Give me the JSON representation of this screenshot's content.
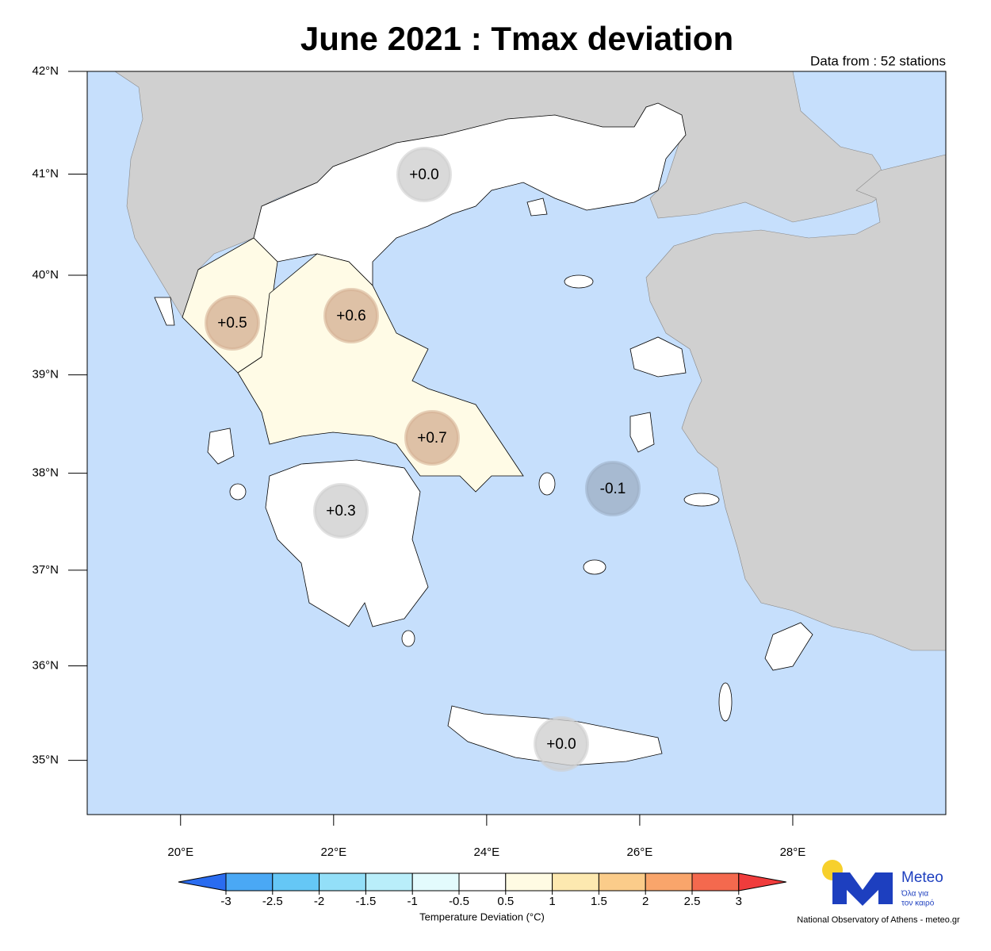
{
  "map": {
    "title": "June 2021 : Tmax deviation",
    "subtitle": "Data from : 52 stations",
    "lonlim": [
      18.78,
      30
    ],
    "latlim": [
      34.42,
      42
    ],
    "lat_ticks": [
      {
        "value": 42,
        "label": "42°N"
      },
      {
        "value": 41,
        "label": "41°N"
      },
      {
        "value": 40,
        "label": "40°N"
      },
      {
        "value": 39,
        "label": "39°N"
      },
      {
        "value": 38,
        "label": "38°N"
      },
      {
        "value": 37,
        "label": "37°N"
      },
      {
        "value": 36,
        "label": "36°N"
      },
      {
        "value": 35,
        "label": "35°N"
      }
    ],
    "lon_ticks": [
      {
        "value": 20,
        "label": "20°E"
      },
      {
        "value": 22,
        "label": "22°E"
      },
      {
        "value": 24,
        "label": "24°E"
      },
      {
        "value": 26,
        "label": "26°E"
      },
      {
        "value": 28,
        "label": "28°E"
      }
    ],
    "stations": {
      "values": [
        0,
        0.5,
        0.6,
        0.7,
        0.3,
        -0.1,
        0
      ],
      "value_labels": [
        "+0.0",
        "+0.5",
        "+0.6",
        "+0.7",
        "+0.3",
        "-0.1",
        "+0.0"
      ],
      "colors": [
        "#cfcfcf",
        "#d6b396",
        "#d6b396",
        "#d6b396",
        "#cfcfcf",
        "#9fb0c6",
        "#cfcfcf"
      ]
    }
  },
  "colorbar": {
    "ticks": [
      -3,
      -2.5,
      -2,
      -1.5,
      -1,
      -0.5,
      0.5,
      1,
      1.5,
      2,
      2.5,
      3
    ],
    "colors": [
      "#4aa8f5",
      "#65c7f6",
      "#93dff8",
      "#b9eefa",
      "#e3fbfd",
      "#ffffff",
      "#fffbe3",
      "#fde9b0",
      "#fbcc8a",
      "#f9a56b",
      "#f4694e"
    ],
    "low_color": "#2a6cf0",
    "high_color": "#f03c3c",
    "label": "Temperature Deviation (°C)"
  },
  "logo": {
    "name": "Meteo",
    "tagline_1": "Όλα για",
    "tagline_2": "τον καιρό",
    "credit": "National Observatory of Athens - meteo.gr"
  }
}
